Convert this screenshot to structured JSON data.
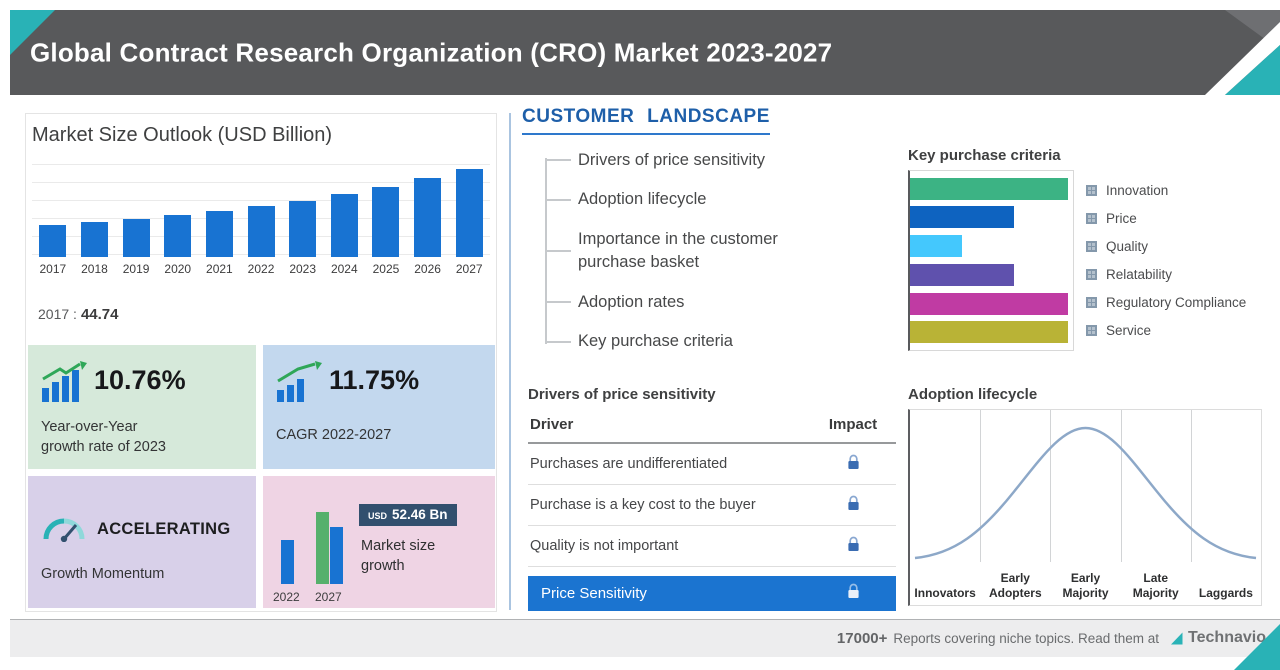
{
  "header": {
    "title": "Global Contract Research Organization (CRO) Market 2023-2027"
  },
  "market_outlook": {
    "title": "Market Size Outlook (USD Billion)",
    "base_year_label": "2017 :",
    "base_value": "44.74",
    "cards": {
      "yoy": {
        "value": "10.76%",
        "label_lines": [
          "Year-over-Year",
          "growth rate of 2023"
        ]
      },
      "cagr": {
        "value": "11.75%",
        "label": "CAGR 2022-2027"
      },
      "momentum": {
        "value": "ACCELERATING",
        "label": "Growth Momentum"
      },
      "growth": {
        "currency": "USD",
        "amount": "52.46 Bn",
        "label_lines": [
          "Market size",
          "growth"
        ],
        "start_year": "2022",
        "end_year": "2027"
      }
    }
  },
  "customer_landscape": {
    "title": "CUSTOMER LANDSCAPE",
    "items": [
      "Drivers of price sensitivity",
      "Adoption lifecycle",
      "Importance in the customer purchase basket",
      "Adoption rates",
      "Key purchase criteria"
    ]
  },
  "key_purchase_criteria": {
    "title": "Key purchase criteria"
  },
  "price_table": {
    "title": "Drivers of price sensitivity",
    "columns": [
      "Driver",
      "Impact"
    ],
    "rows": [
      "Purchases are undifferentiated",
      "Purchase is a key cost to the buyer",
      "Quality is not important"
    ],
    "highlight_row": "Price Sensitivity"
  },
  "adoption_lifecycle": {
    "title": "Adoption lifecycle",
    "stages": [
      "Innovators",
      "Early Adopters",
      "Early Majority",
      "Late Majority",
      "Laggards"
    ]
  },
  "footer": {
    "reports_count": "17000+",
    "text": "Reports covering niche topics. Read them at",
    "brand": "Technavio"
  },
  "colors": {
    "accent_teal": "#29b2b6",
    "header_gray": "#58595b",
    "bar_blue": "#1873d2",
    "highlight_blue": "#1b74d0",
    "heading_blue": "#1e5fa9"
  },
  "chart_data": [
    {
      "type": "bar",
      "title": "Market Size Outlook (USD Billion)",
      "ylabel": "USD Billion",
      "categories": [
        "2017",
        "2018",
        "2019",
        "2020",
        "2021",
        "2022",
        "2023",
        "2024",
        "2025",
        "2026",
        "2027"
      ],
      "values": [
        44.74,
        49.0,
        53.7,
        58.9,
        64.5,
        70.7,
        78.3,
        87.7,
        98.2,
        110.0,
        123.2
      ],
      "bar_color": "#1873d2",
      "labeled_point": {
        "category": "2017",
        "value": 44.74
      }
    },
    {
      "type": "bar",
      "orientation": "horizontal",
      "title": "Key purchase criteria",
      "categories": [
        "Innovation",
        "Price",
        "Quality",
        "Relatability",
        "Regulatory Compliance",
        "Service"
      ],
      "values": [
        100,
        66,
        33,
        66,
        100,
        100
      ],
      "colors": [
        "#3cb384",
        "#0e63c0",
        "#44c8fd",
        "#5f51ad",
        "#c03ba3",
        "#b9b336"
      ],
      "legend_position": "right"
    },
    {
      "type": "line",
      "title": "Adoption lifecycle",
      "curve": "bell",
      "categories": [
        "Innovators",
        "Early Adopters",
        "Early Majority",
        "Late Majority",
        "Laggards"
      ]
    },
    {
      "type": "bar",
      "title": "Market size growth",
      "categories": [
        "2022",
        "2027"
      ],
      "growth_usd_bn": 52.46
    }
  ]
}
